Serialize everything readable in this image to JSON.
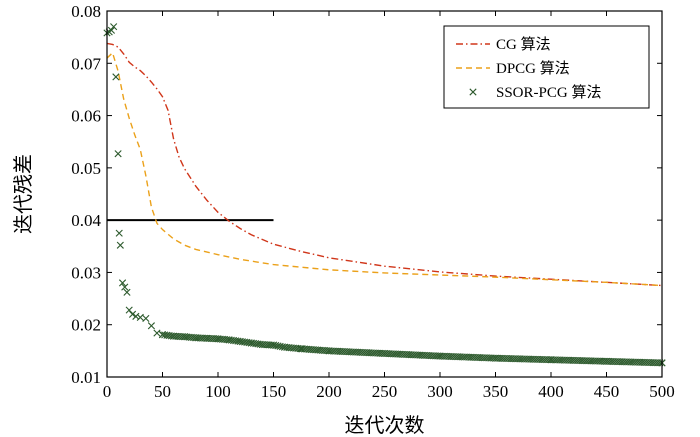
{
  "chart_data": {
    "type": "line",
    "title": "",
    "xlabel": "迭代次数",
    "ylabel": "迭代残差",
    "xlim": [
      0,
      500
    ],
    "ylim": [
      0.01,
      0.08
    ],
    "xticks": [
      "0",
      "50",
      "100",
      "150",
      "200",
      "250",
      "300",
      "350",
      "400",
      "450",
      "500"
    ],
    "yticks": [
      "0.01",
      "0.02",
      "0.03",
      "0.04",
      "0.05",
      "0.06",
      "0.07",
      "0.08"
    ],
    "legend_position": "top-right",
    "reference_line": {
      "y": 0.04,
      "x_start": 0,
      "x_end": 150
    },
    "series": [
      {
        "name": "CG 算法",
        "style": "dash-dot",
        "color": "#d0361a",
        "x": [
          0,
          5,
          10,
          15,
          20,
          25,
          30,
          35,
          40,
          45,
          50,
          55,
          60,
          65,
          70,
          80,
          90,
          100,
          110,
          120,
          130,
          150,
          175,
          200,
          250,
          300,
          350,
          400,
          450,
          500
        ],
        "y": [
          0.0738,
          0.0736,
          0.0731,
          0.0718,
          0.0702,
          0.0693,
          0.0686,
          0.0676,
          0.0664,
          0.0651,
          0.0636,
          0.061,
          0.0555,
          0.052,
          0.0498,
          0.0465,
          0.0438,
          0.0415,
          0.0398,
          0.0384,
          0.0372,
          0.0354,
          0.034,
          0.0328,
          0.0312,
          0.0301,
          0.0293,
          0.0287,
          0.0281,
          0.0275
        ]
      },
      {
        "name": "DPCG 算法",
        "style": "dashed",
        "color": "#eba11a",
        "x": [
          0,
          5,
          10,
          15,
          20,
          25,
          30,
          35,
          40,
          45,
          50,
          60,
          70,
          80,
          100,
          120,
          150,
          200,
          250,
          300,
          350,
          400,
          450,
          500
        ],
        "y": [
          0.071,
          0.072,
          0.0685,
          0.0632,
          0.0595,
          0.0563,
          0.0535,
          0.0485,
          0.0425,
          0.0394,
          0.0382,
          0.0364,
          0.0352,
          0.0344,
          0.0334,
          0.0325,
          0.0315,
          0.0305,
          0.0299,
          0.0295,
          0.0291,
          0.0286,
          0.0281,
          0.0275
        ]
      },
      {
        "name": "SSOR-PCG 算法",
        "style": "x-markers",
        "color": "#2d5a2d",
        "x": [
          0,
          2,
          4,
          6,
          8,
          10,
          11,
          12,
          14,
          16,
          18,
          20,
          23,
          26,
          30,
          35,
          40,
          45,
          50,
          60,
          70,
          80,
          90,
          100,
          110,
          120,
          130,
          140,
          150,
          160,
          175,
          200,
          250,
          300,
          350,
          400,
          450,
          500
        ],
        "y": [
          0.0758,
          0.076,
          0.0763,
          0.077,
          0.0674,
          0.0527,
          0.0375,
          0.0352,
          0.028,
          0.0272,
          0.0262,
          0.0228,
          0.022,
          0.0216,
          0.0214,
          0.0212,
          0.0198,
          0.0184,
          0.0181,
          0.0178,
          0.0177,
          0.0175,
          0.0174,
          0.0173,
          0.0171,
          0.0168,
          0.0165,
          0.0162,
          0.0161,
          0.0157,
          0.0154,
          0.015,
          0.0145,
          0.014,
          0.0136,
          0.0133,
          0.013,
          0.0127
        ]
      }
    ]
  }
}
